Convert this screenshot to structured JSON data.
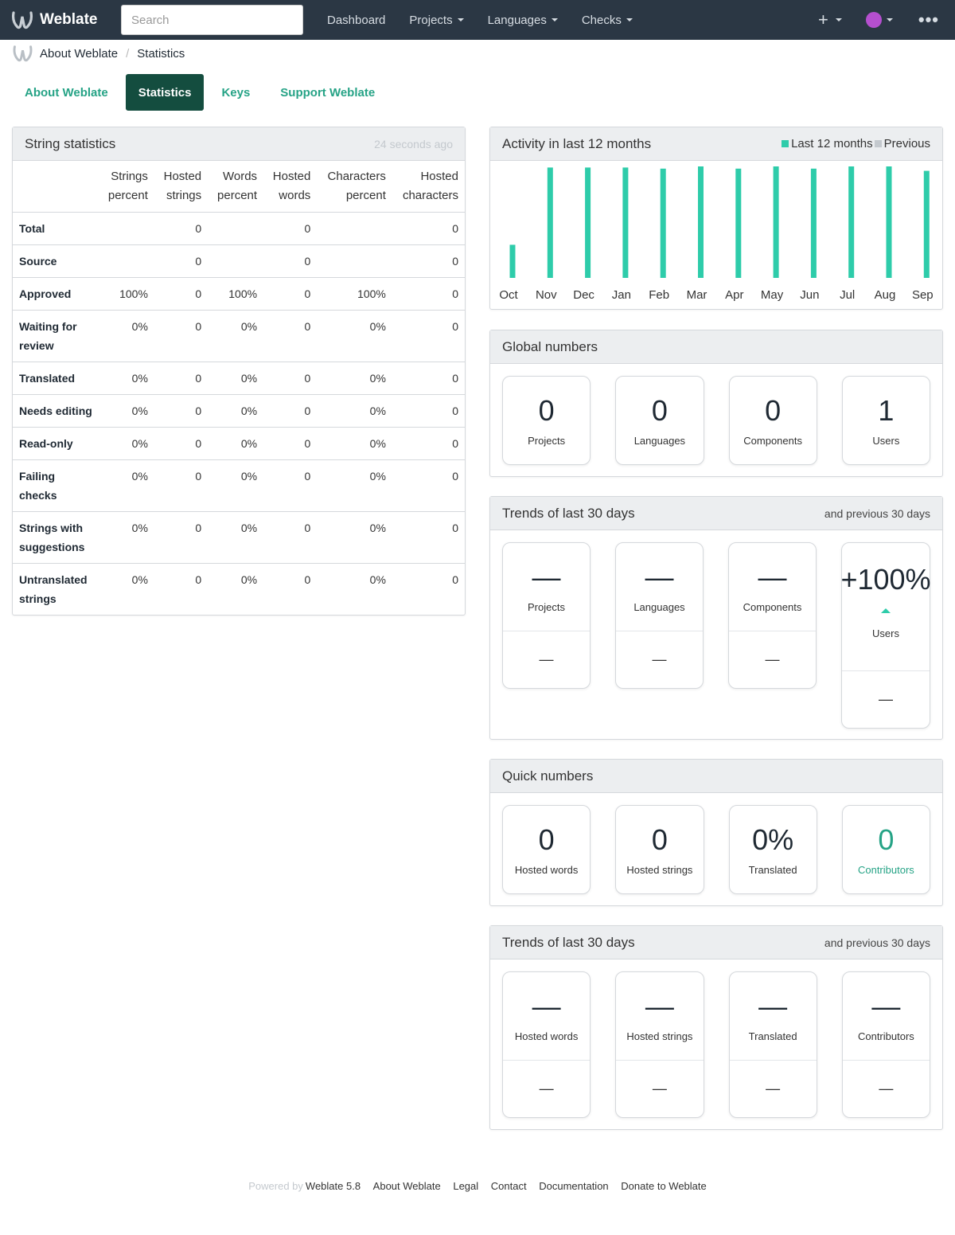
{
  "navbar": {
    "brand": "Weblate",
    "search_placeholder": "Search",
    "links": [
      "Dashboard",
      "Projects",
      "Languages",
      "Checks"
    ],
    "plus_symbol": "+",
    "more_symbol": "•••"
  },
  "breadcrumb": {
    "parent": "About Weblate",
    "separator": "/",
    "current": "Statistics"
  },
  "tabs": [
    "About Weblate",
    "Statistics",
    "Keys",
    "Support Weblate"
  ],
  "string_stats": {
    "title": "String statistics",
    "updated": "24 seconds ago",
    "headers": [
      [
        "Strings",
        "percent"
      ],
      [
        "Hosted",
        "strings"
      ],
      [
        "Words",
        "percent"
      ],
      [
        "Hosted",
        "words"
      ],
      [
        "Characters",
        "percent"
      ],
      [
        "Hosted",
        "characters"
      ]
    ],
    "rows": [
      {
        "label": [
          "Total"
        ],
        "cells": [
          "",
          "0",
          "",
          "0",
          "",
          "0"
        ]
      },
      {
        "label": [
          "Source"
        ],
        "cells": [
          "",
          "0",
          "",
          "0",
          "",
          "0"
        ]
      },
      {
        "label": [
          "Approved"
        ],
        "cells": [
          "100%",
          "0",
          "100%",
          "0",
          "100%",
          "0"
        ]
      },
      {
        "label": [
          "Waiting for",
          "review"
        ],
        "cells": [
          "0%",
          "0",
          "0%",
          "0",
          "0%",
          "0"
        ]
      },
      {
        "label": [
          "Translated"
        ],
        "cells": [
          "0%",
          "0",
          "0%",
          "0",
          "0%",
          "0"
        ]
      },
      {
        "label": [
          "Needs editing"
        ],
        "cells": [
          "0%",
          "0",
          "0%",
          "0",
          "0%",
          "0"
        ]
      },
      {
        "label": [
          "Read-only"
        ],
        "cells": [
          "0%",
          "0",
          "0%",
          "0",
          "0%",
          "0"
        ]
      },
      {
        "label": [
          "Failing",
          "checks"
        ],
        "cells": [
          "0%",
          "0",
          "0%",
          "0",
          "0%",
          "0"
        ]
      },
      {
        "label": [
          "Strings with",
          "suggestions"
        ],
        "cells": [
          "0%",
          "0",
          "0%",
          "0",
          "0%",
          "0"
        ]
      },
      {
        "label": [
          "Untranslated",
          "strings"
        ],
        "cells": [
          "0%",
          "0",
          "0%",
          "0",
          "0%",
          "0"
        ]
      }
    ]
  },
  "activity": {
    "title": "Activity in last 12 months",
    "legend": {
      "current": "Last 12 months",
      "previous": "Previous"
    }
  },
  "chart_data": {
    "type": "bar",
    "categories": [
      "Oct",
      "Nov",
      "Dec",
      "Jan",
      "Feb",
      "Mar",
      "Apr",
      "May",
      "Jun",
      "Jul",
      "Aug",
      "Sep"
    ],
    "series": [
      {
        "name": "Last 12 months",
        "values": [
          0.3,
          1.0,
          1.0,
          1.0,
          0.99,
          1.01,
          0.99,
          1.01,
          0.99,
          1.01,
          1.01,
          0.97
        ]
      },
      {
        "name": "Previous",
        "values": [
          0,
          0,
          0,
          0,
          0,
          0,
          0,
          0,
          0,
          0,
          0,
          0
        ]
      }
    ],
    "colors": {
      "current": "#2eccaa",
      "previous": "#c4c9ce"
    },
    "ylim": [
      0,
      1.01
    ],
    "grid": false,
    "legend_position": "top-right"
  },
  "global_numbers": {
    "title": "Global numbers",
    "cards": [
      {
        "value": "0",
        "label": "Projects"
      },
      {
        "value": "0",
        "label": "Languages"
      },
      {
        "value": "0",
        "label": "Components"
      },
      {
        "value": "1",
        "label": "Users"
      }
    ]
  },
  "trends_global": {
    "title": "Trends of last 30 days",
    "subtitle": "and previous 30 days",
    "cards": [
      {
        "value": "—",
        "label": "Projects",
        "previous": "—"
      },
      {
        "value": "—",
        "label": "Languages",
        "previous": "—"
      },
      {
        "value": "—",
        "label": "Components",
        "previous": "—"
      },
      {
        "value": "+100%",
        "label": "Users",
        "previous": "—",
        "trend": "up"
      }
    ]
  },
  "quick_numbers": {
    "title": "Quick numbers",
    "cards": [
      {
        "value": "0",
        "label": "Hosted words"
      },
      {
        "value": "0",
        "label": "Hosted strings"
      },
      {
        "value": "0%",
        "label": "Translated"
      },
      {
        "value": "0",
        "label": "Contributors",
        "accent": true
      }
    ]
  },
  "trends_quick": {
    "title": "Trends of last 30 days",
    "subtitle": "and previous 30 days",
    "cards": [
      {
        "value": "—",
        "label": "Hosted words",
        "previous": "—"
      },
      {
        "value": "—",
        "label": "Hosted strings",
        "previous": "—"
      },
      {
        "value": "—",
        "label": "Translated",
        "previous": "—"
      },
      {
        "value": "—",
        "label": "Contributors",
        "previous": "—"
      }
    ]
  },
  "footer": {
    "powered_by": "Powered by",
    "version": "Weblate 5.8",
    "links": [
      "About Weblate",
      "Legal",
      "Contact",
      "Documentation",
      "Donate to Weblate"
    ]
  }
}
